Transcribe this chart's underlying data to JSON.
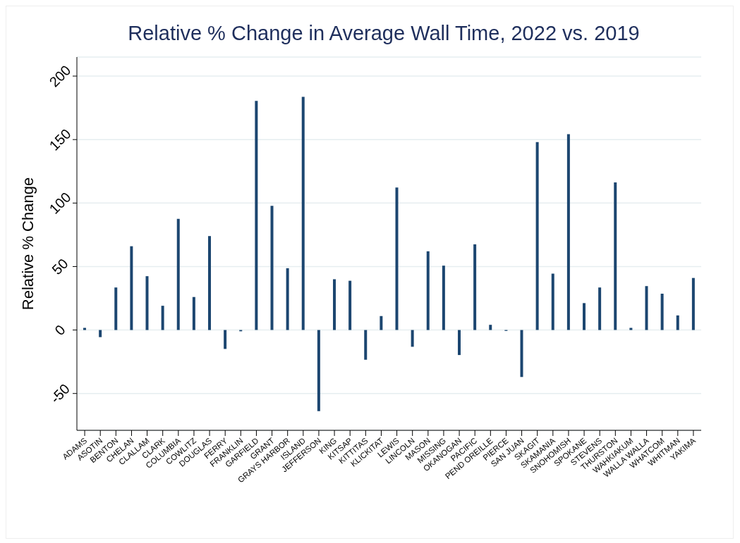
{
  "chart_data": {
    "type": "bar",
    "title": "Relative % Change in Average Wall Time, 2022 vs. 2019",
    "ylabel": "Relative % Change",
    "categories": [
      "ADAMS",
      "ASOTIN",
      "BENTON",
      "CHELAN",
      "CLALLAM",
      "CLARK",
      "COLUMBIA",
      "COWLITZ",
      "DOUGLAS",
      "FERRY",
      "FRANKLIN",
      "GARFIELD",
      "GRANT",
      "GRAYS HARBOR",
      "ISLAND",
      "JEFFERSON",
      "KING",
      "KITSAP",
      "KITTITAS",
      "KLICKITAT",
      "LEWIS",
      "LINCOLN",
      "MASON",
      "MISSING",
      "OKANOGAN",
      "PACIFIC",
      "PEND OREILLE",
      "PIERCE",
      "SAN JUAN",
      "SKAGIT",
      "SKAMANIA",
      "SNOHOMISH",
      "SPOKANE",
      "STEVENS",
      "THURSTON",
      "WAHKIAKUM",
      "WALLA WALLA",
      "WHATCOM",
      "WHITMAN",
      "YAKIMA"
    ],
    "values": [
      1.7,
      -5.6,
      33.5,
      66,
      42.4,
      19.1,
      87.5,
      26,
      74,
      -14.9,
      -1,
      180.5,
      97.8,
      48.7,
      183.6,
      -63.9,
      40,
      38.8,
      -23.4,
      11,
      112.3,
      -13.2,
      62,
      50.7,
      -19.7,
      67.5,
      4.1,
      -0.7,
      -37,
      148,
      44.4,
      154.3,
      21.2,
      33.5,
      116.2,
      1.7,
      34.6,
      28.6,
      11.5,
      41
    ],
    "color": "#1c4670",
    "ylim": [
      -79,
      215
    ],
    "yticks": [
      -50,
      0,
      50,
      100,
      150,
      200
    ],
    "grid": "y"
  }
}
